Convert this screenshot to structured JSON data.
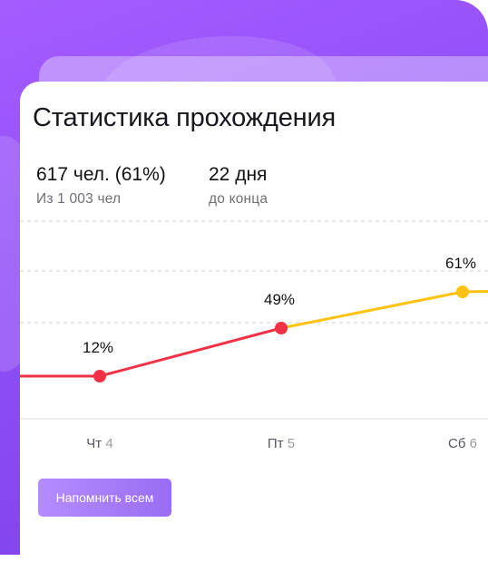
{
  "card": {
    "title": "Статистика прохождения",
    "stats": [
      {
        "main": "617 чел. (61%)",
        "sub": "Из 1 003 чел"
      },
      {
        "main": "22 дня",
        "sub": "до конца"
      }
    ]
  },
  "button": {
    "label": "Напомнить всем"
  },
  "colors": {
    "accent": "#a45cff",
    "red": "#f03247",
    "yellow": "#ffc214",
    "muted": "#9b9ba3"
  },
  "chart_data": {
    "type": "line",
    "categories": [
      {
        "day": "Чт",
        "num": "4"
      },
      {
        "day": "Пт",
        "num": "5"
      },
      {
        "day": "Сб",
        "num": "6"
      }
    ],
    "values": [
      12,
      49,
      61
    ],
    "value_labels": [
      "12%",
      "49%",
      "61%"
    ],
    "ylim": [
      0,
      100
    ],
    "grid": true
  }
}
